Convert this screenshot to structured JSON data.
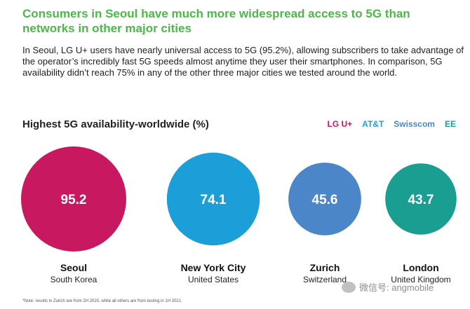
{
  "headline": "Consumers in Seoul have much more widespread access to 5G than networks in other major cities",
  "intro": "In Seoul, LG U+ users have nearly universal access to 5G (95.2%), allowing subscribers to take advantage of the operator’s incredibly fast 5G speeds almost anytime they user their smartphones. In comparison, 5G availability didn’t reach 75% in any of the other three major cities we tested around the world.",
  "footnote": "*Note: results in Zurich are from 2H 2020, while all others are from testing in 1H 2021.",
  "watermark": "微信号: angmobile",
  "chart_data": {
    "type": "bubble",
    "title": "Highest 5G availability-worldwide (%)",
    "legend_position": "top-right",
    "series": [
      {
        "name": "LG U+",
        "city": "Seoul",
        "country": "South Korea",
        "value": 95.2,
        "color": "#c8185f"
      },
      {
        "name": "AT&T",
        "city": "New York City",
        "country": "United States",
        "value": 74.1,
        "color": "#1c9fd8"
      },
      {
        "name": "Swisscom",
        "city": "Zurich",
        "country": "Switzerland",
        "value": 45.6,
        "color": "#4a86c8"
      },
      {
        "name": "EE",
        "city": "London",
        "country": "United Kingdom",
        "value": 43.7,
        "color": "#1a9e92"
      }
    ]
  }
}
